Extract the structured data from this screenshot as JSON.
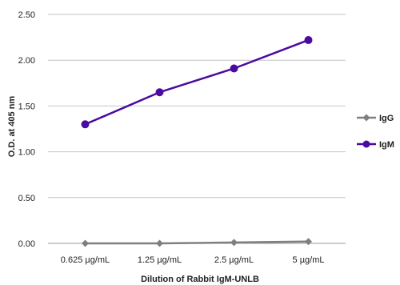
{
  "chart_data": {
    "type": "line",
    "categories": [
      "0.625 µg/mL",
      "1.25 µg/mL",
      "2.5 µg/mL",
      "5 µg/mL"
    ],
    "series": [
      {
        "name": "IgG",
        "values": [
          0.0,
          0.0,
          0.01,
          0.02
        ],
        "color": "#7f7f7f"
      },
      {
        "name": "IgM",
        "values": [
          1.3,
          1.65,
          1.91,
          2.22
        ],
        "color": "#4b0ba0"
      }
    ],
    "xlabel": "Dilution of Rabbit IgM-UNLB",
    "ylabel": "O.D. at 405 nm",
    "ylim": [
      0,
      2.5
    ],
    "yticks": [
      "0.00",
      "0.50",
      "1.00",
      "1.50",
      "2.00",
      "2.50"
    ],
    "grid": true,
    "legend_position": "right"
  }
}
